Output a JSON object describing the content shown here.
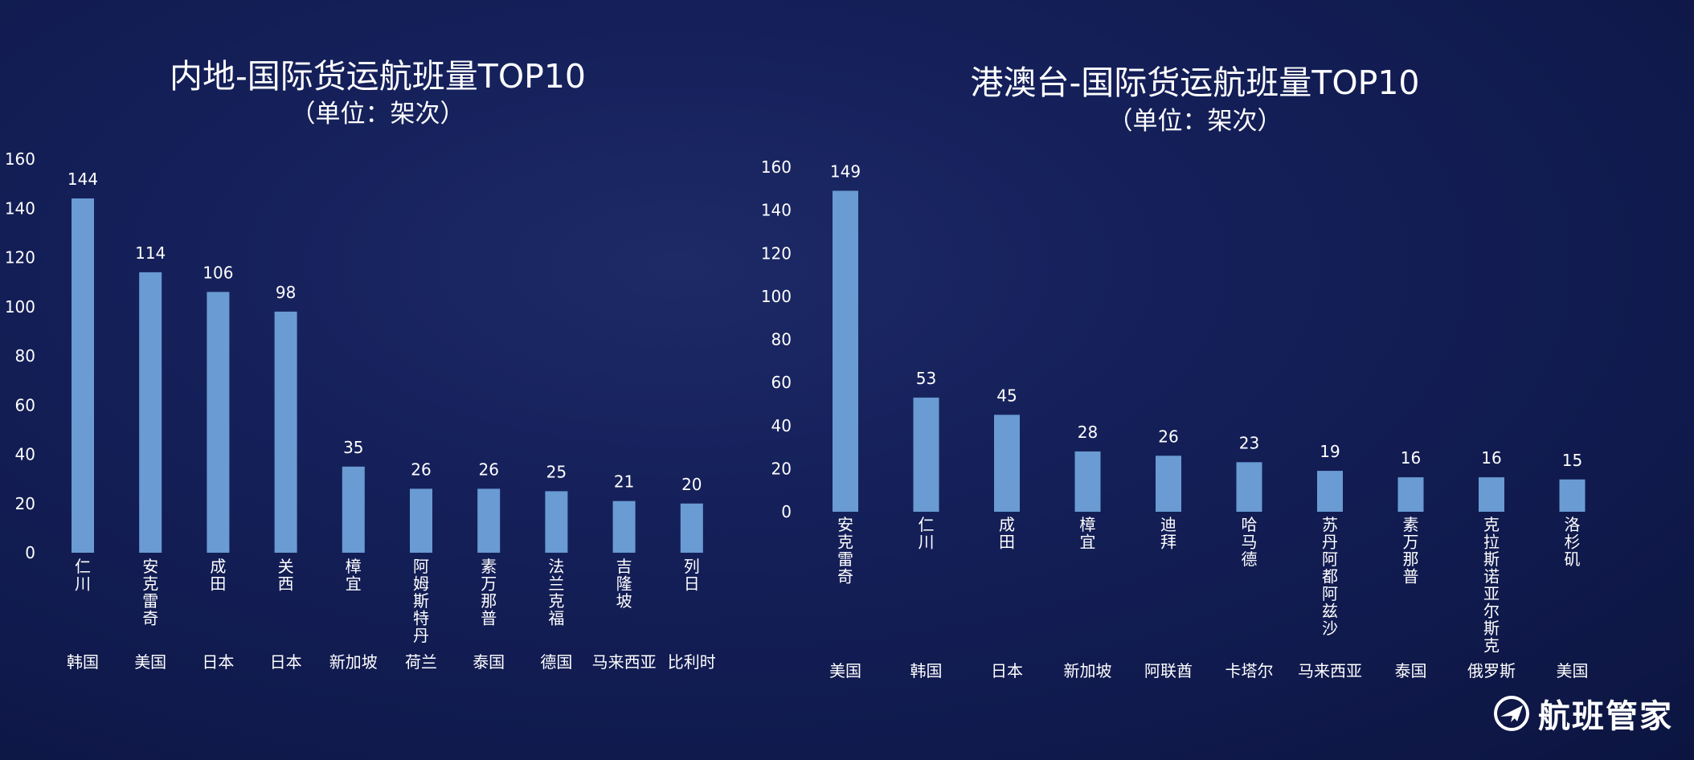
{
  "chart_data": [
    {
      "type": "bar",
      "title": "内地-国际货运航班量TOP10",
      "subtitle": "（单位：架次）",
      "categories": [
        "仁川",
        "安克雷奇",
        "成田",
        "关西",
        "樟宜",
        "阿姆斯特丹",
        "素万那普",
        "法兰克福",
        "吉隆坡",
        "列日"
      ],
      "countries": [
        "韩国",
        "美国",
        "日本",
        "日本",
        "新加坡",
        "荷兰",
        "泰国",
        "德国",
        "马来西亚",
        "比利时"
      ],
      "values": [
        144,
        114,
        106,
        98,
        35,
        26,
        26,
        25,
        21,
        20
      ],
      "ylim": [
        0,
        160
      ],
      "yticks": [
        0,
        20,
        40,
        60,
        80,
        100,
        120,
        140,
        160
      ],
      "grid": false,
      "bar_color": "#6a9bd3"
    },
    {
      "type": "bar",
      "title": "港澳台-国际货运航班量TOP10",
      "subtitle": "（单位：架次）",
      "categories": [
        "安克雷奇",
        "仁川",
        "成田",
        "樟宜",
        "迪拜",
        "哈马德",
        "苏丹阿都阿兹沙",
        "素万那普",
        "克拉斯诺亚尔斯克",
        "洛杉矶"
      ],
      "countries": [
        "美国",
        "韩国",
        "日本",
        "新加坡",
        "阿联酋",
        "卡塔尔",
        "马来西亚",
        "泰国",
        "俄罗斯",
        "美国"
      ],
      "values": [
        149,
        53,
        45,
        28,
        26,
        23,
        19,
        16,
        16,
        15
      ],
      "ylim": [
        0,
        160
      ],
      "yticks": [
        0,
        20,
        40,
        60,
        80,
        100,
        120,
        140,
        160
      ],
      "grid": false,
      "bar_color": "#6a9bd3"
    }
  ],
  "brand": {
    "name": "航班管家",
    "icon": "airplane-logo-icon"
  }
}
